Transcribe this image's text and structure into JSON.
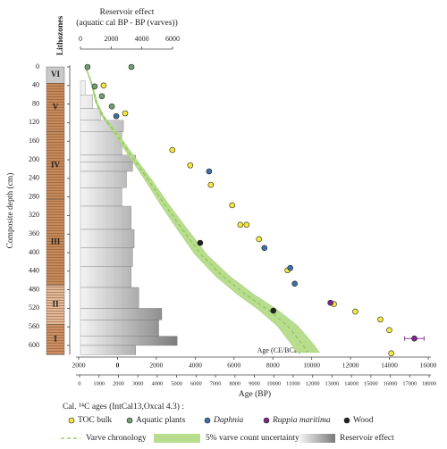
{
  "lithozones_label": "Lithozones",
  "chart_data": {
    "type": "scatter",
    "ylabel": "Composite depth (cm)",
    "ylim": [
      0,
      620
    ],
    "yticks": [
      0,
      40,
      80,
      120,
      160,
      200,
      240,
      280,
      320,
      360,
      400,
      440,
      480,
      520,
      560,
      600
    ],
    "top_axis": {
      "label": [
        "Reservoir effect",
        "(aquatic cal BP - BP (varves))"
      ],
      "xlim": [
        0,
        6000
      ],
      "xticks": [
        0,
        2000,
        4000,
        6000
      ]
    },
    "ce_axis": {
      "label": "Age (CE/BCE)",
      "xlim": [
        2000,
        -16000
      ],
      "xticks": [
        {
          "value": 2000,
          "label": "2000"
        },
        0,
        {
          "value": -2000,
          "label": "2000"
        },
        {
          "value": -4000,
          "label": "4000"
        },
        {
          "value": -6000,
          "label": "6000"
        },
        {
          "value": -8000,
          "label": "8000"
        },
        {
          "value": -10000,
          "label": "10000"
        },
        {
          "value": -12000,
          "label": "12000"
        },
        {
          "value": -14000,
          "label": "14000"
        },
        {
          "value": -16000,
          "label": "16000"
        }
      ]
    },
    "bp_axis": {
      "label": "Age (BP)",
      "xlim": [
        0,
        18000
      ],
      "xticks": [
        0,
        1000,
        2000,
        3000,
        4000,
        5000,
        6000,
        7000,
        8000,
        9000,
        10000,
        11000,
        12000,
        13000,
        14000,
        15000,
        16000,
        17000,
        18000
      ]
    },
    "lithozones": [
      {
        "label": "VI",
        "top": 0,
        "bottom": 35,
        "color": "#c9c9c9"
      },
      {
        "label": "V",
        "top": 35,
        "bottom": 140,
        "color": "#c68a5a"
      },
      {
        "label": "IV",
        "top": 140,
        "bottom": 285,
        "color": "#c68a5a"
      },
      {
        "label": "III",
        "top": 285,
        "bottom": 470,
        "color": "#c68a5a"
      },
      {
        "label": "II",
        "top": 470,
        "bottom": 555,
        "color": "#e2b896"
      },
      {
        "label": "I",
        "top": 555,
        "bottom": 620,
        "color": "#cc8e62"
      }
    ],
    "legend_title": "Cal. ¹⁴C ages (IntCal13,Oxcal 4.3) :",
    "series": [
      {
        "name": "TOC bulk",
        "color": "#f4e83c",
        "x": [
          1240,
          2350,
          4780,
          5700,
          6760,
          7860,
          8280,
          8600,
          9240,
          10710,
          13100,
          14200,
          15490,
          15950,
          16050
        ],
        "y": [
          40,
          100,
          179,
          212,
          254,
          298,
          340,
          340,
          371,
          438,
          511,
          527,
          544,
          567,
          617
        ]
      },
      {
        "name": "Aquatic plants",
        "color": "#6fa070",
        "x": [
          410,
          2670,
          780,
          1150,
          1660
        ],
        "y": [
          0,
          0,
          42,
          63,
          85
        ]
      },
      {
        "name": "Daphnia",
        "color": "#3f6fa8",
        "x": [
          1890,
          6670,
          9520,
          10850,
          11080
        ],
        "y": [
          106,
          225,
          390,
          433,
          467
        ]
      },
      {
        "name": "Ruppia maritima",
        "color": "#7b2a8a",
        "x": [
          12920,
          17240
        ],
        "y": [
          508,
          585
        ],
        "xerr": [
          null,
          500
        ]
      },
      {
        "name": "Wood",
        "color": "#222222",
        "x": [
          6210,
          9980
        ],
        "y": [
          379,
          525
        ]
      }
    ],
    "varve": {
      "name": "Varve chronology",
      "color": "#8fc35a",
      "x": [
        370,
        640,
        870,
        1200,
        1890,
        2670,
        3490,
        4410,
        5330,
        6250,
        7400,
        8550,
        9700,
        10710,
        11450,
        11770
      ],
      "y": [
        6,
        38,
        77,
        106,
        144,
        192,
        240,
        298,
        352,
        404,
        452,
        490,
        523,
        558,
        596,
        615
      ]
    },
    "uncertainty": {
      "name": "5% varve count uncertainty",
      "color": "#b8dd8e",
      "error": [
        20,
        30,
        45,
        60,
        95,
        135,
        175,
        220,
        265,
        310,
        370,
        430,
        485,
        535,
        570,
        590
      ]
    },
    "reservoir": {
      "name": "Reservoir effect",
      "color": "#8a8a8a",
      "depth_edges": [
        30,
        60,
        90,
        115,
        140,
        190,
        205,
        225,
        260,
        300,
        350,
        390,
        430,
        475,
        520,
        545,
        580,
        600,
        620
      ],
      "values": [
        300,
        800,
        1300,
        2800,
        2700,
        3600,
        3400,
        3000,
        2700,
        3300,
        3500,
        3400,
        3300,
        3800,
        5300,
        5100,
        6300,
        3600
      ]
    }
  }
}
